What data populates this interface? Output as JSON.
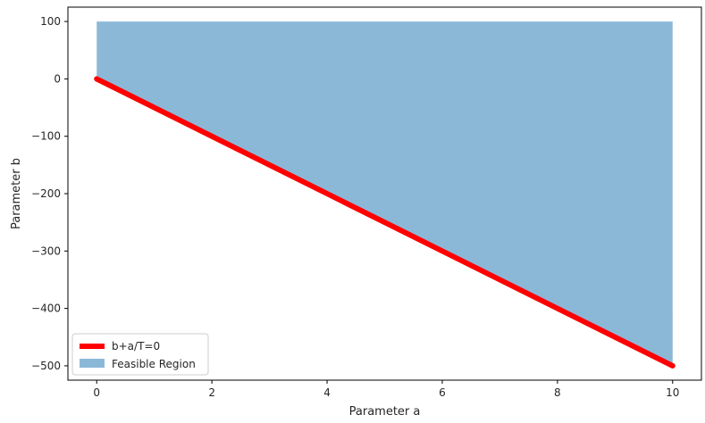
{
  "chart_data": {
    "type": "area",
    "xlabel": "Parameter a",
    "ylabel": "Parameter b",
    "xlim": [
      -0.5,
      10.5
    ],
    "ylim": [
      -525,
      125
    ],
    "x_ticks": [
      0,
      2,
      4,
      6,
      8,
      10
    ],
    "x_tick_labels": [
      "0",
      "2",
      "4",
      "6",
      "8",
      "10"
    ],
    "y_ticks": [
      100,
      0,
      -100,
      -200,
      -300,
      -400,
      -500
    ],
    "y_tick_labels": [
      "100",
      "0",
      "−100",
      "−200",
      "−300",
      "−400",
      "−500"
    ],
    "grid": false,
    "legend_position": "lower-left",
    "series": [
      {
        "name": "b+a/T=0",
        "kind": "line",
        "color": "#ff0000",
        "x": [
          0,
          10
        ],
        "y": [
          0,
          -500
        ]
      },
      {
        "name": "Feasible Region",
        "kind": "fill_between",
        "color": "#8cb8d8",
        "x": [
          0,
          10
        ],
        "y_lower": [
          0,
          -500
        ],
        "y_upper": [
          100,
          100
        ]
      }
    ]
  }
}
